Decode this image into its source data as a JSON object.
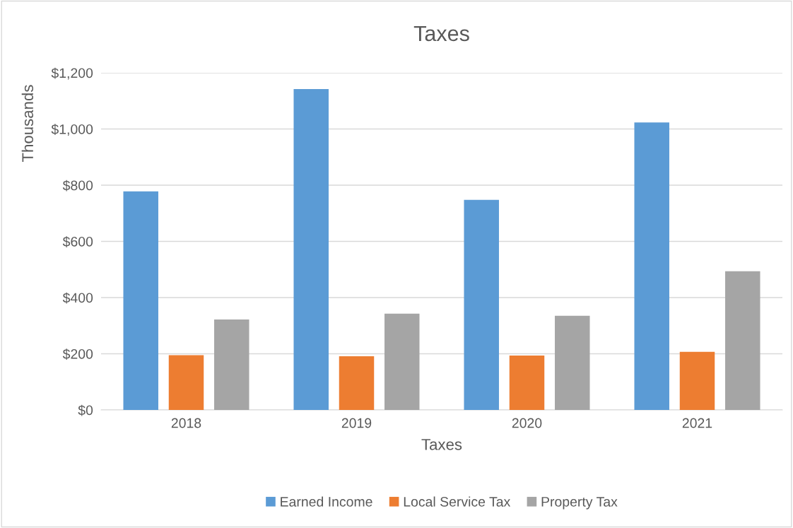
{
  "chart_data": {
    "type": "bar",
    "title": "Taxes",
    "xlabel": "Taxes",
    "ylabel": "Thousands",
    "categories": [
      "2018",
      "2019",
      "2020",
      "2021"
    ],
    "series": [
      {
        "name": "Earned Income",
        "color": "#5b9bd5",
        "values": [
          778,
          1142,
          748,
          1023
        ]
      },
      {
        "name": "Local Service Tax",
        "color": "#ed7d31",
        "values": [
          195,
          191,
          194,
          207
        ]
      },
      {
        "name": "Property Tax",
        "color": "#a5a5a5",
        "values": [
          322,
          343,
          335,
          494
        ]
      }
    ],
    "ylim": [
      0,
      1200
    ],
    "yticks": [
      {
        "value": 0,
        "label": "$0"
      },
      {
        "value": 200,
        "label": "$200"
      },
      {
        "value": 400,
        "label": "$400"
      },
      {
        "value": 600,
        "label": "$600"
      },
      {
        "value": 800,
        "label": "$800"
      },
      {
        "value": 1000,
        "label": "$1,000"
      },
      {
        "value": 1200,
        "label": "$1,200"
      }
    ],
    "grid": "y",
    "legend": "bottom"
  }
}
